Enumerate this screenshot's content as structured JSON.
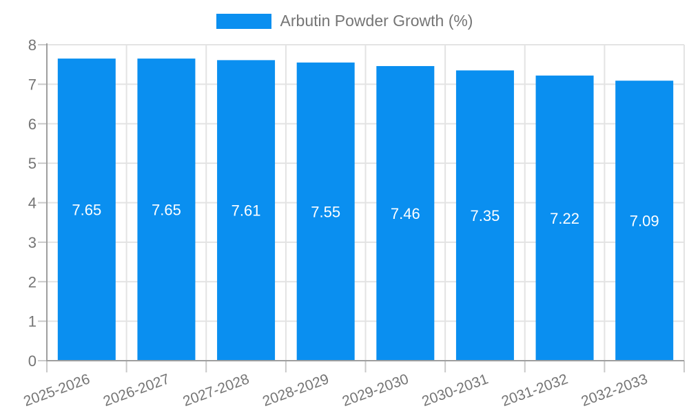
{
  "chart_data": {
    "type": "bar",
    "title": "Arbutin Powder Growth (%)",
    "categories": [
      "2025-2026",
      "2026-2027",
      "2027-2028",
      "2028-2029",
      "2029-2030",
      "2030-2031",
      "2031-2032",
      "2032-2033"
    ],
    "values": [
      7.65,
      7.65,
      7.61,
      7.55,
      7.46,
      7.35,
      7.22,
      7.09
    ],
    "value_label_decimals": 2,
    "xlabel": "",
    "ylabel": "",
    "ylim": [
      0,
      8
    ],
    "ytick_step": 1,
    "grid": true,
    "legend_position": "top",
    "x_label_rotation_deg": -20,
    "colors": {
      "bar": "#0a8ff0",
      "bar_value_label": "#ffffff",
      "axis": "#9e9e9e",
      "grid": "#e3e3e3",
      "tick_mark": "#c9c9c9",
      "tick_text": "#757575",
      "background": "#ffffff"
    }
  }
}
